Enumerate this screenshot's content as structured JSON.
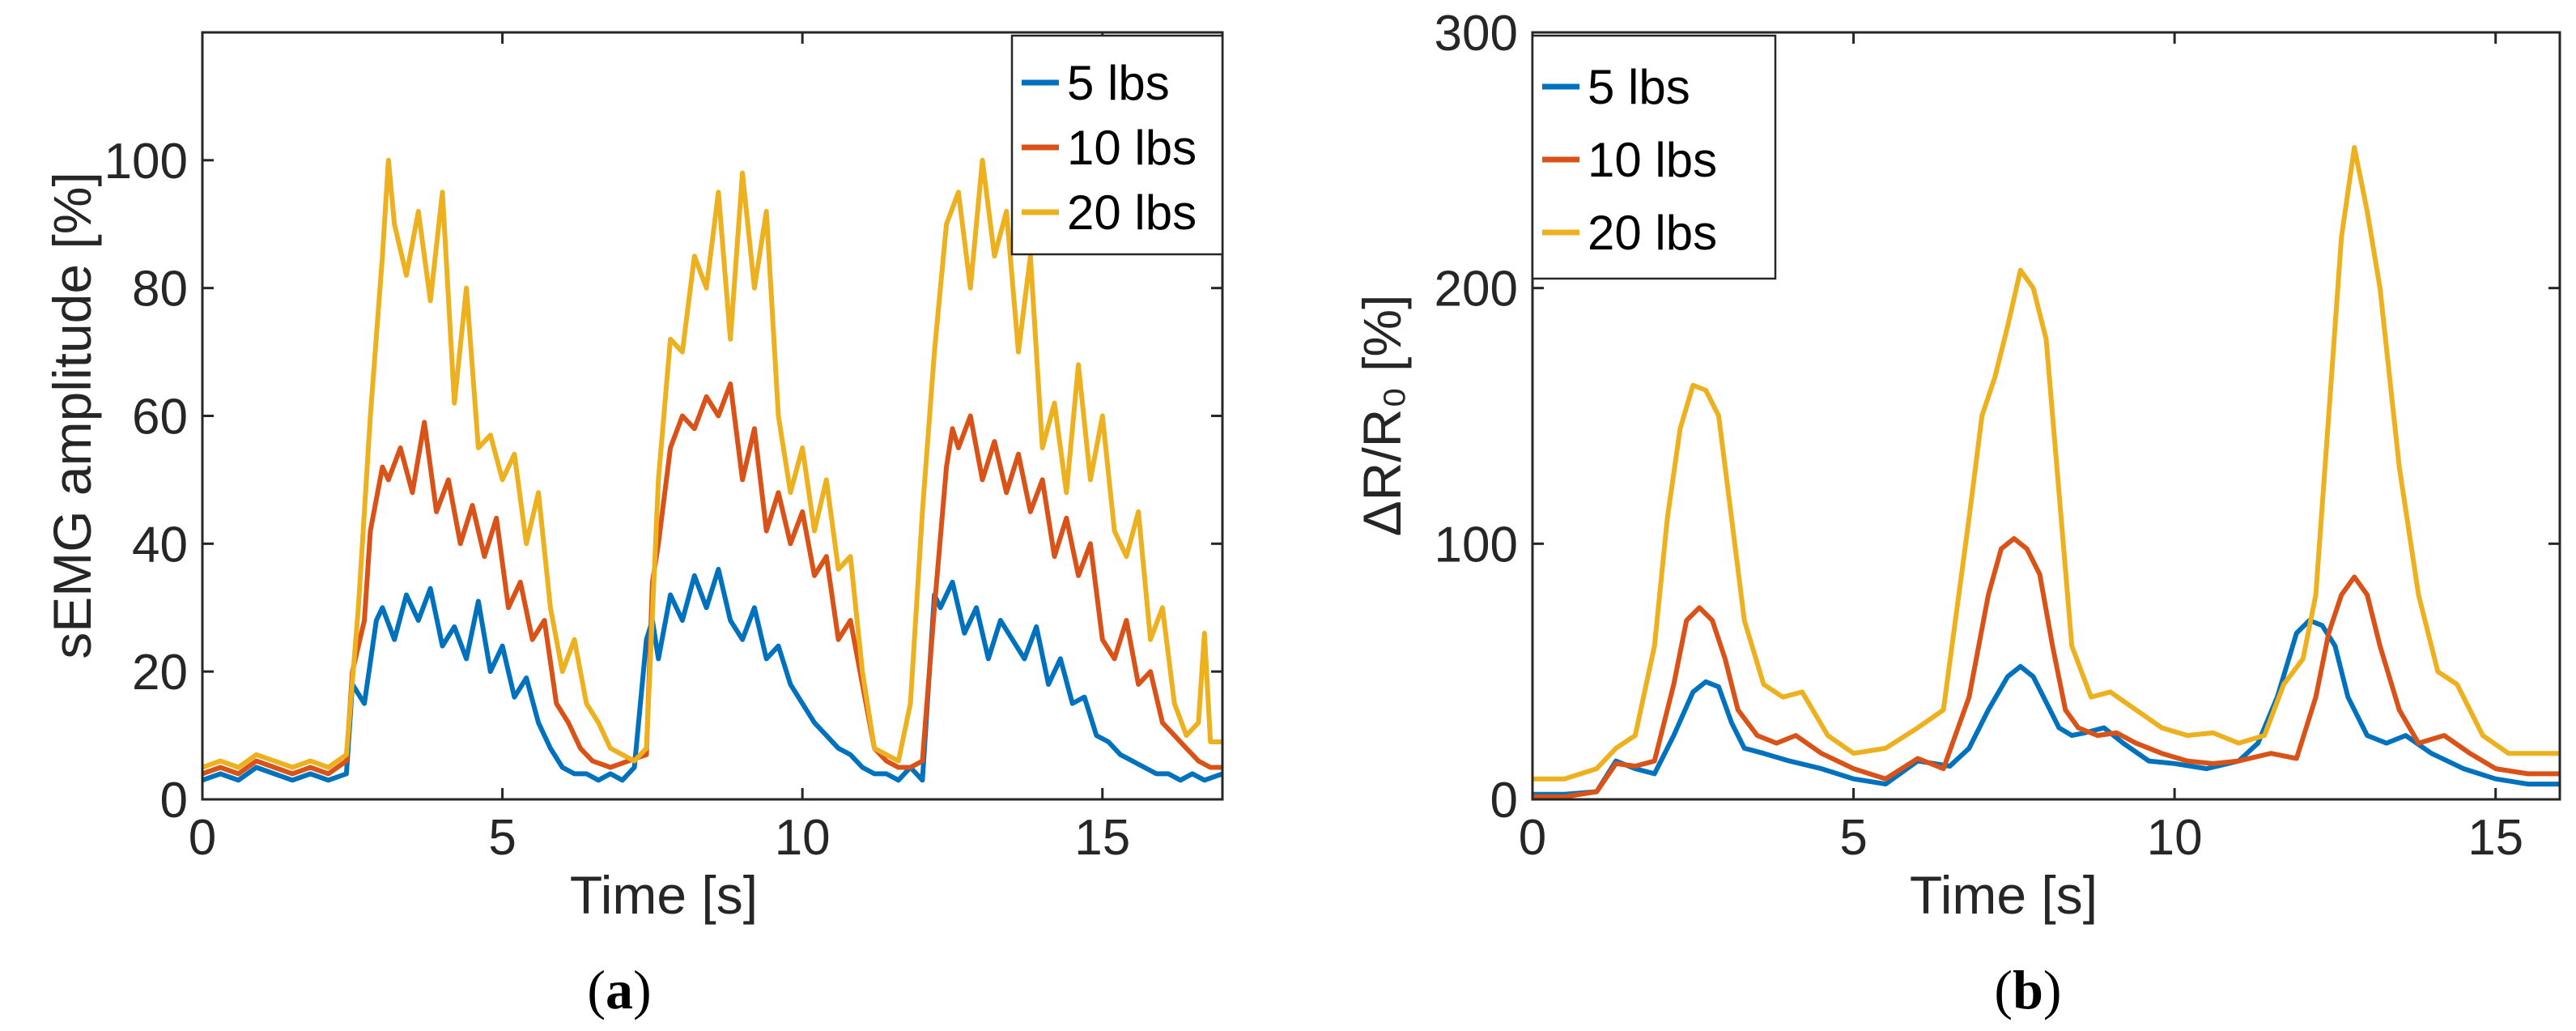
{
  "colors": {
    "5 lbs": "#0072BD",
    "10 lbs": "#D95319",
    "20 lbs": "#EDB120",
    "axis": "#262626"
  },
  "chart_data": [
    {
      "panel": "a",
      "caption_open": "(",
      "caption_letter": "a",
      "caption_close": ")",
      "type": "line",
      "xlabel": "Time [s]",
      "ylabel": "sEMG amplitude [%]",
      "xlim": [
        0,
        17
      ],
      "ylim": [
        0,
        120
      ],
      "xticks": [
        0,
        5,
        10,
        15
      ],
      "yticks": [
        0,
        20,
        40,
        60,
        80,
        100
      ],
      "legend_position": "top-right",
      "series": [
        {
          "name": "5 lbs",
          "x": [
            0,
            0.3,
            0.6,
            0.9,
            1.2,
            1.5,
            1.8,
            2.1,
            2.4,
            2.5,
            2.7,
            2.9,
            3.0,
            3.2,
            3.4,
            3.6,
            3.8,
            4.0,
            4.2,
            4.4,
            4.6,
            4.8,
            5.0,
            5.2,
            5.4,
            5.6,
            5.8,
            6.0,
            6.2,
            6.4,
            6.6,
            6.8,
            7.0,
            7.2,
            7.4,
            7.5,
            7.6,
            7.8,
            8.0,
            8.2,
            8.4,
            8.6,
            8.8,
            9.0,
            9.2,
            9.4,
            9.6,
            9.8,
            10.0,
            10.2,
            10.4,
            10.6,
            10.8,
            11.0,
            11.2,
            11.4,
            11.6,
            11.8,
            12.0,
            12.2,
            12.3,
            12.5,
            12.7,
            12.9,
            13.1,
            13.3,
            13.5,
            13.7,
            13.9,
            14.1,
            14.3,
            14.5,
            14.7,
            14.9,
            15.1,
            15.3,
            15.5,
            15.7,
            15.9,
            16.1,
            16.3,
            16.5,
            16.7,
            17.0
          ],
          "values": [
            3,
            4,
            3,
            5,
            4,
            3,
            4,
            3,
            4,
            18,
            15,
            28,
            30,
            25,
            32,
            28,
            33,
            24,
            27,
            22,
            31,
            20,
            24,
            16,
            19,
            12,
            8,
            5,
            4,
            4,
            3,
            4,
            3,
            5,
            25,
            28,
            22,
            32,
            28,
            35,
            30,
            36,
            28,
            25,
            30,
            22,
            24,
            18,
            15,
            12,
            10,
            8,
            7,
            5,
            4,
            4,
            3,
            5,
            3,
            32,
            30,
            34,
            26,
            30,
            22,
            28,
            25,
            22,
            27,
            18,
            22,
            15,
            16,
            10,
            9,
            7,
            6,
            5,
            4,
            4,
            3,
            4,
            3,
            4
          ]
        },
        {
          "name": "10 lbs",
          "x": [
            0,
            0.3,
            0.6,
            0.9,
            1.2,
            1.5,
            1.8,
            2.1,
            2.4,
            2.5,
            2.7,
            2.8,
            3.0,
            3.1,
            3.3,
            3.5,
            3.7,
            3.9,
            4.1,
            4.3,
            4.5,
            4.7,
            4.9,
            5.1,
            5.3,
            5.5,
            5.7,
            5.9,
            6.1,
            6.3,
            6.5,
            6.8,
            7.1,
            7.4,
            7.5,
            7.6,
            7.8,
            8.0,
            8.2,
            8.4,
            8.6,
            8.8,
            9.0,
            9.2,
            9.4,
            9.6,
            9.8,
            10.0,
            10.2,
            10.4,
            10.6,
            10.8,
            11.0,
            11.2,
            11.4,
            11.6,
            11.8,
            12.0,
            12.2,
            12.4,
            12.5,
            12.6,
            12.8,
            13.0,
            13.2,
            13.4,
            13.6,
            13.8,
            14.0,
            14.2,
            14.4,
            14.6,
            14.8,
            15.0,
            15.2,
            15.4,
            15.6,
            15.8,
            16.0,
            16.2,
            16.4,
            16.6,
            16.8,
            17.0
          ],
          "values": [
            4,
            5,
            4,
            6,
            5,
            4,
            5,
            4,
            6,
            20,
            28,
            42,
            52,
            50,
            55,
            48,
            59,
            45,
            50,
            40,
            46,
            38,
            44,
            30,
            34,
            25,
            28,
            15,
            12,
            8,
            6,
            5,
            6,
            7,
            34,
            40,
            55,
            60,
            58,
            63,
            60,
            65,
            50,
            58,
            42,
            48,
            40,
            45,
            35,
            38,
            25,
            28,
            18,
            8,
            6,
            5,
            5,
            6,
            30,
            52,
            58,
            55,
            60,
            50,
            56,
            48,
            54,
            45,
            50,
            38,
            44,
            35,
            40,
            25,
            22,
            28,
            18,
            20,
            12,
            10,
            8,
            6,
            5,
            5
          ]
        },
        {
          "name": "20 lbs",
          "x": [
            0,
            0.3,
            0.6,
            0.9,
            1.2,
            1.5,
            1.8,
            2.1,
            2.4,
            2.6,
            2.8,
            3.0,
            3.1,
            3.2,
            3.4,
            3.6,
            3.8,
            4.0,
            4.2,
            4.4,
            4.6,
            4.8,
            5.0,
            5.2,
            5.4,
            5.6,
            5.8,
            6.0,
            6.2,
            6.4,
            6.6,
            6.8,
            7.0,
            7.2,
            7.4,
            7.6,
            7.8,
            8.0,
            8.2,
            8.4,
            8.6,
            8.8,
            9.0,
            9.2,
            9.4,
            9.6,
            9.8,
            10.0,
            10.2,
            10.4,
            10.6,
            10.8,
            11.0,
            11.2,
            11.4,
            11.6,
            11.8,
            12.0,
            12.2,
            12.4,
            12.6,
            12.8,
            13.0,
            13.2,
            13.4,
            13.6,
            13.8,
            14.0,
            14.2,
            14.4,
            14.6,
            14.8,
            15.0,
            15.2,
            15.4,
            15.6,
            15.8,
            16.0,
            16.2,
            16.4,
            16.6,
            16.7,
            16.8,
            17.0
          ],
          "values": [
            5,
            6,
            5,
            7,
            6,
            5,
            6,
            5,
            7,
            30,
            60,
            85,
            100,
            90,
            82,
            92,
            78,
            95,
            62,
            80,
            55,
            57,
            50,
            54,
            40,
            48,
            30,
            20,
            25,
            15,
            12,
            8,
            7,
            6,
            8,
            50,
            72,
            70,
            85,
            80,
            95,
            72,
            98,
            80,
            92,
            60,
            48,
            55,
            42,
            50,
            36,
            38,
            20,
            8,
            7,
            6,
            15,
            45,
            70,
            90,
            95,
            80,
            100,
            85,
            92,
            70,
            85,
            55,
            62,
            48,
            68,
            50,
            60,
            42,
            38,
            45,
            25,
            30,
            15,
            10,
            12,
            26,
            9,
            9
          ]
        }
      ]
    },
    {
      "panel": "b",
      "caption_open": "(",
      "caption_letter": "b",
      "caption_close": ")",
      "type": "line",
      "xlabel": "Time [s]",
      "ylabel": "ΔR/R₀ [%]",
      "xlim": [
        0,
        16
      ],
      "ylim": [
        0,
        300
      ],
      "xticks": [
        0,
        5,
        10,
        15
      ],
      "yticks": [
        0,
        100,
        200,
        300
      ],
      "legend_position": "top-left",
      "series": [
        {
          "name": "5 lbs",
          "x": [
            0,
            0.5,
            1.0,
            1.3,
            1.6,
            1.9,
            2.2,
            2.5,
            2.7,
            2.9,
            3.1,
            3.3,
            3.6,
            4.0,
            4.5,
            5.0,
            5.5,
            6.0,
            6.5,
            6.8,
            7.1,
            7.4,
            7.6,
            7.8,
            8.0,
            8.2,
            8.4,
            8.6,
            8.9,
            9.2,
            9.6,
            10.0,
            10.5,
            11.0,
            11.3,
            11.6,
            11.9,
            12.1,
            12.3,
            12.5,
            12.7,
            13.0,
            13.3,
            13.6,
            14.0,
            14.5,
            15.0,
            15.5,
            16.0
          ],
          "values": [
            2,
            2,
            3,
            15,
            12,
            10,
            25,
            42,
            46,
            44,
            30,
            20,
            18,
            15,
            12,
            8,
            6,
            15,
            13,
            20,
            35,
            48,
            52,
            48,
            38,
            28,
            25,
            26,
            28,
            22,
            15,
            14,
            12,
            15,
            22,
            40,
            65,
            70,
            68,
            60,
            40,
            25,
            22,
            25,
            18,
            12,
            8,
            6,
            6
          ]
        },
        {
          "name": "10 lbs",
          "x": [
            0,
            0.5,
            1.0,
            1.3,
            1.6,
            1.9,
            2.2,
            2.4,
            2.6,
            2.8,
            3.0,
            3.2,
            3.5,
            3.8,
            4.1,
            4.5,
            5.0,
            5.5,
            6.0,
            6.4,
            6.8,
            7.1,
            7.3,
            7.5,
            7.7,
            7.9,
            8.1,
            8.3,
            8.5,
            8.8,
            9.1,
            9.4,
            9.8,
            10.2,
            10.6,
            11.0,
            11.5,
            11.9,
            12.2,
            12.4,
            12.6,
            12.8,
            13.0,
            13.2,
            13.5,
            13.8,
            14.2,
            14.6,
            15.0,
            15.5,
            16.0
          ],
          "values": [
            1,
            1,
            3,
            14,
            13,
            15,
            45,
            70,
            75,
            70,
            55,
            35,
            25,
            22,
            25,
            18,
            12,
            8,
            16,
            12,
            40,
            80,
            98,
            102,
            98,
            88,
            60,
            35,
            28,
            25,
            26,
            22,
            18,
            15,
            14,
            15,
            18,
            16,
            40,
            65,
            80,
            87,
            80,
            60,
            35,
            22,
            25,
            18,
            12,
            10,
            10
          ]
        },
        {
          "name": "20 lbs",
          "x": [
            0,
            0.5,
            1.0,
            1.3,
            1.6,
            1.9,
            2.1,
            2.3,
            2.5,
            2.7,
            2.9,
            3.1,
            3.3,
            3.6,
            3.9,
            4.2,
            4.6,
            5.0,
            5.5,
            6.0,
            6.4,
            6.8,
            7.0,
            7.2,
            7.4,
            7.6,
            7.8,
            8.0,
            8.2,
            8.4,
            8.7,
            9.0,
            9.4,
            9.8,
            10.2,
            10.6,
            11.0,
            11.4,
            11.7,
            12.0,
            12.2,
            12.4,
            12.6,
            12.8,
            13.0,
            13.2,
            13.5,
            13.8,
            14.1,
            14.4,
            14.8,
            15.2,
            15.6,
            16.0
          ],
          "values": [
            8,
            8,
            12,
            20,
            25,
            60,
            110,
            145,
            162,
            160,
            150,
            110,
            70,
            45,
            40,
            42,
            25,
            18,
            20,
            28,
            35,
            110,
            150,
            165,
            185,
            207,
            200,
            180,
            120,
            60,
            40,
            42,
            35,
            28,
            25,
            26,
            22,
            25,
            45,
            55,
            80,
            150,
            220,
            255,
            230,
            200,
            130,
            80,
            50,
            45,
            25,
            18,
            18,
            18
          ]
        }
      ]
    }
  ]
}
